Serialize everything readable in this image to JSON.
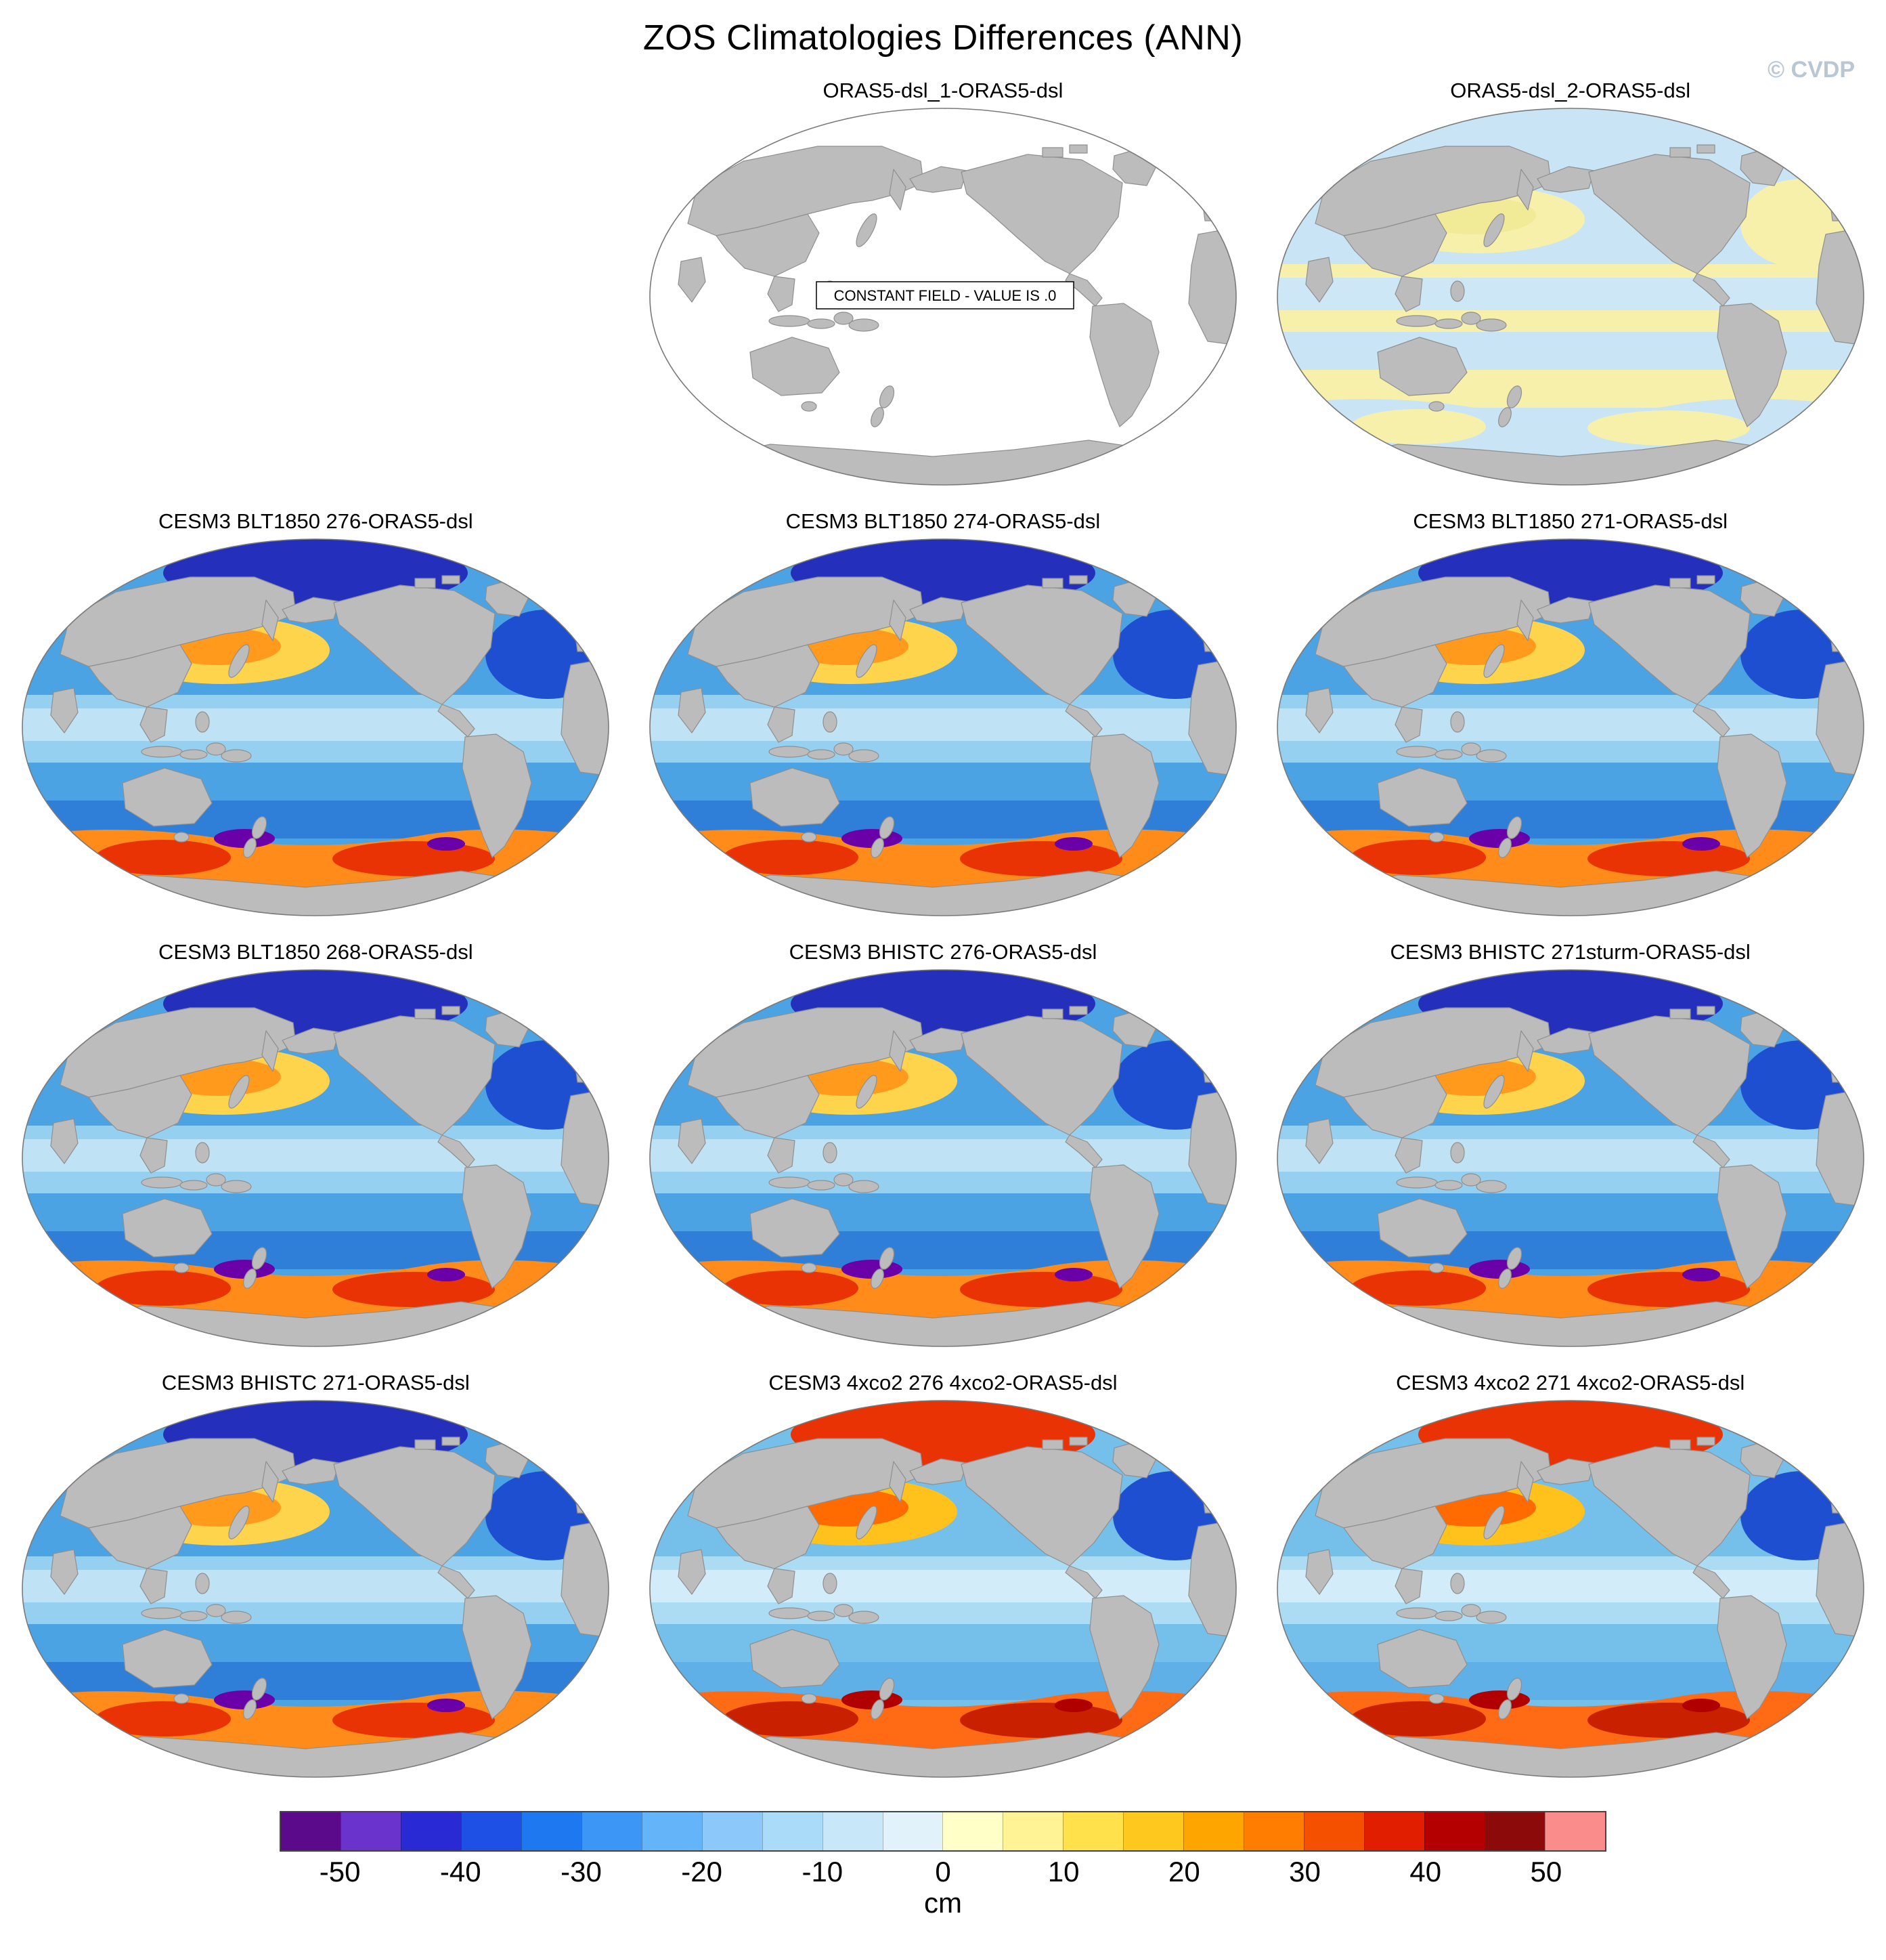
{
  "figure": {
    "title": "ZOS Climatologies Differences (ANN)",
    "watermark": "© CVDP",
    "watermark_color": "#b9c7d4"
  },
  "colorbar": {
    "unit": "cm",
    "range": [
      -55,
      55
    ],
    "ticks": [
      -50,
      -40,
      -30,
      -20,
      -10,
      0,
      10,
      20,
      30,
      40,
      50
    ],
    "colors": [
      "#5c0a8c",
      "#6a33cc",
      "#2a2ad4",
      "#1e50e6",
      "#1e78f0",
      "#3c96f5",
      "#64b4fa",
      "#8cc8fa",
      "#aadcfa",
      "#c8e8fa",
      "#e1f2fb",
      "#ffffc8",
      "#fff396",
      "#ffe14b",
      "#ffc81e",
      "#ffa500",
      "#ff7d00",
      "#f55000",
      "#e11e00",
      "#b40000",
      "#8c0a0a",
      "#fa8c8c"
    ]
  },
  "palettes": {
    "constant": {
      "ocean": "#ffffff",
      "equator": "none",
      "equator2": "none",
      "natl": "none",
      "warm": "none",
      "warmcore": "none",
      "arctic": "none",
      "subpolar": "none",
      "south": "none",
      "southhot": "none",
      "spot": "none"
    },
    "obs2": {
      "ocean": "#c9e5f5",
      "equator": "#f6f0aa",
      "equator2": "#cde7f6",
      "natl": "#f6f0aa",
      "warm": "#f6f0aa",
      "warmcore": "#f1ea96",
      "arctic": "#c9e5f5",
      "subpolar": "#f6f0aa",
      "south": "#c9e5f5",
      "southhot": "#f6f0aa",
      "spot": "none"
    },
    "model_cool": {
      "ocean": "#4ba3e3",
      "equator": "#96d0f0",
      "equator2": "#bfe2f5",
      "natl": "#1d4fd0",
      "warm": "#ffd44d",
      "warmcore": "#ff9a1c",
      "arctic": "#2430bb",
      "subpolar": "#2f7fd8",
      "south": "#ff8c1a",
      "southhot": "#e93305",
      "spot": "#6a00a8"
    },
    "model_warm": {
      "ocean": "#74c0ea",
      "equator": "#abdcf4",
      "equator2": "#d3ecf9",
      "natl": "#1d4fd0",
      "warm": "#ffc21c",
      "warmcore": "#ff6b00",
      "arctic": "#e93305",
      "subpolar": "#5fb0e6",
      "south": "#ff6b14",
      "southhot": "#c92100",
      "spot": "#b00000"
    }
  },
  "panels": [
    {
      "title": "ORAS5-dsl_1-ORAS5-dsl",
      "type": "constant",
      "note": "CONSTANT FIELD - VALUE IS .0",
      "grid": {
        "col": 2
      }
    },
    {
      "title": "ORAS5-dsl_2-ORAS5-dsl",
      "type": "obs2",
      "grid": {
        "col": 3
      }
    },
    {
      "title": "CESM3 BLT1850 276-ORAS5-dsl",
      "type": "model_cool"
    },
    {
      "title": "CESM3 BLT1850 274-ORAS5-dsl",
      "type": "model_cool"
    },
    {
      "title": "CESM3 BLT1850 271-ORAS5-dsl",
      "type": "model_cool"
    },
    {
      "title": "CESM3 BLT1850 268-ORAS5-dsl",
      "type": "model_cool"
    },
    {
      "title": "CESM3 BHISTC 276-ORAS5-dsl",
      "type": "model_cool"
    },
    {
      "title": "CESM3 BHISTC 271sturm-ORAS5-dsl",
      "type": "model_cool"
    },
    {
      "title": "CESM3 BHISTC 271-ORAS5-dsl",
      "type": "model_cool"
    },
    {
      "title": "CESM3 4xco2 276 4xco2-ORAS5-dsl",
      "type": "model_warm"
    },
    {
      "title": "CESM3 4xco2 271 4xco2-ORAS5-dsl",
      "type": "model_warm"
    }
  ],
  "chart_data": {
    "type": "heatmap",
    "title": "ZOS Climatologies Differences (ANN)",
    "unit": "cm",
    "colorbar_ticks": [
      -50,
      -40,
      -30,
      -20,
      -10,
      0,
      10,
      20,
      30,
      40,
      50
    ],
    "colorbar_range": [
      -55,
      55
    ],
    "panel_titles": [
      "ORAS5-dsl_1-ORAS5-dsl",
      "ORAS5-dsl_2-ORAS5-dsl",
      "CESM3 BLT1850 276-ORAS5-dsl",
      "CESM3 BLT1850 274-ORAS5-dsl",
      "CESM3 BLT1850 271-ORAS5-dsl",
      "CESM3 BLT1850 268-ORAS5-dsl",
      "CESM3 BHISTC 276-ORAS5-dsl",
      "CESM3 BHISTC 271sturm-ORAS5-dsl",
      "CESM3 BHISTC 271-ORAS5-dsl",
      "CESM3 4xco2 276 4xco2-ORAS5-dsl",
      "CESM3 4xco2 271 4xco2-ORAS5-dsl"
    ],
    "annotations": [
      "CONSTANT FIELD - VALUE IS .0"
    ],
    "notes": "Eleven Pacific-centered global map panels of annual-mean sea-surface-height (ZOS) climatology differences vs ORAS5-dsl on a shared diverging blue-red scale in cm; first panel is a uniform zero field."
  }
}
